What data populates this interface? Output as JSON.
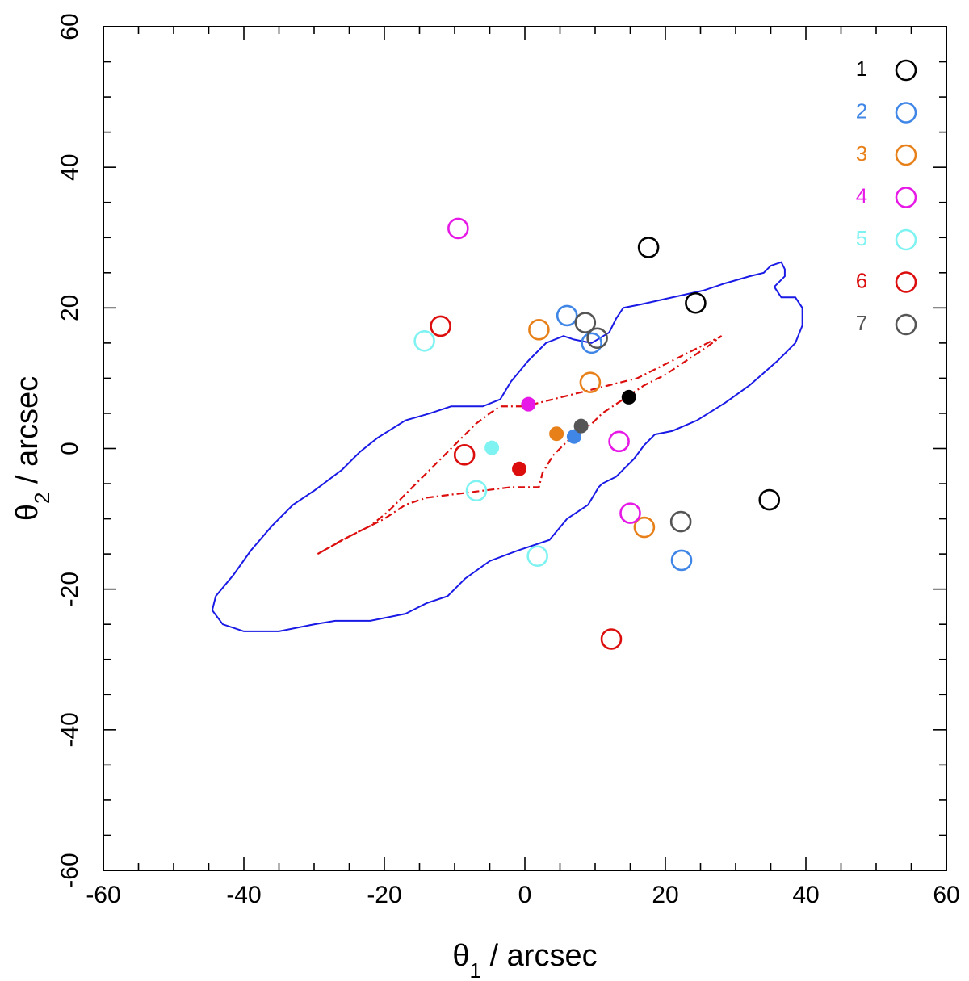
{
  "chart_data": {
    "type": "scatter",
    "title": "",
    "xlabel": {
      "symbol": "θ",
      "sub": "1",
      "unit": " / arcsec"
    },
    "ylabel": {
      "symbol": "θ",
      "sub": "2",
      "unit": " / arcsec"
    },
    "xlim": [
      -60,
      60
    ],
    "ylim": [
      -60,
      60
    ],
    "xticks": [
      -60,
      -40,
      -20,
      0,
      20,
      40,
      60
    ],
    "yticks": [
      -60,
      -40,
      -20,
      0,
      20,
      40,
      60
    ],
    "xtick_labels": [
      "-60",
      "-40",
      "-20",
      "0",
      "20",
      "40",
      "60"
    ],
    "ytick_labels": [
      "-60",
      "-40",
      "-20",
      "0",
      "20",
      "40",
      "60"
    ],
    "minor_step": 5,
    "legend_position": "top-right",
    "series": [
      {
        "name": "1",
        "color": "#000000",
        "source": [
          14.8,
          7.3
        ],
        "images": [
          [
            17.6,
            28.6
          ],
          [
            24.3,
            20.7
          ],
          [
            34.8,
            -7.3
          ]
        ]
      },
      {
        "name": "2",
        "color": "#3f86e6",
        "source": [
          7.0,
          1.7
        ],
        "images": [
          [
            6.0,
            18.9
          ],
          [
            9.5,
            15.0
          ],
          [
            22.3,
            -15.9
          ]
        ]
      },
      {
        "name": "3",
        "color": "#e8801a",
        "source": [
          4.5,
          2.1
        ],
        "images": [
          [
            2.0,
            16.9
          ],
          [
            9.3,
            9.4
          ],
          [
            17.0,
            -11.2
          ]
        ]
      },
      {
        "name": "4",
        "color": "#e619e6",
        "source": [
          0.5,
          6.3
        ],
        "images": [
          [
            -9.5,
            31.3
          ],
          [
            13.4,
            1.0
          ],
          [
            15.0,
            -9.2
          ]
        ]
      },
      {
        "name": "5",
        "color": "#7ff2f2",
        "source": [
          -4.7,
          0.1
        ],
        "images": [
          [
            -14.3,
            15.3
          ],
          [
            -6.9,
            -6.0
          ],
          [
            1.8,
            -15.3
          ]
        ]
      },
      {
        "name": "6",
        "color": "#dc0d0d",
        "source": [
          -0.8,
          -2.9
        ],
        "images": [
          [
            -12.0,
            17.4
          ],
          [
            -8.6,
            -0.9
          ],
          [
            12.3,
            -27.1
          ]
        ]
      },
      {
        "name": "7",
        "color": "#555555",
        "source": [
          8.0,
          3.2
        ],
        "images": [
          [
            8.6,
            17.9
          ],
          [
            10.3,
            15.7
          ],
          [
            22.2,
            -10.4
          ]
        ]
      }
    ],
    "critical_curve": {
      "color": "#1a1ae6",
      "points": [
        [
          -27,
          -24.5
        ],
        [
          -22,
          -24.5
        ],
        [
          -17,
          -23.5
        ],
        [
          -14,
          -22
        ],
        [
          -11,
          -21
        ],
        [
          -8.5,
          -18.5
        ],
        [
          -5,
          -16
        ],
        [
          -1,
          -14.5
        ],
        [
          3.5,
          -13
        ],
        [
          6,
          -10
        ],
        [
          9,
          -8
        ],
        [
          10.5,
          -5.5
        ],
        [
          11,
          -5
        ],
        [
          13,
          -4
        ],
        [
          15.5,
          -1.5
        ],
        [
          17,
          0.5
        ],
        [
          18.5,
          2
        ],
        [
          21,
          2.5
        ],
        [
          24.5,
          4
        ],
        [
          28.5,
          6.5
        ],
        [
          32,
          9
        ],
        [
          36,
          12.5
        ],
        [
          38.5,
          15
        ],
        [
          39.5,
          17.5
        ],
        [
          39.5,
          20
        ],
        [
          38.5,
          21.5
        ],
        [
          36.5,
          21.5
        ],
        [
          35.5,
          23
        ],
        [
          37,
          24.5
        ],
        [
          37,
          25.5
        ],
        [
          36.5,
          26.5
        ],
        [
          35,
          26
        ],
        [
          34,
          25
        ],
        [
          32,
          24.5
        ],
        [
          28.5,
          23.5
        ],
        [
          25.5,
          22.5
        ],
        [
          21,
          21.5
        ],
        [
          16.5,
          20.5
        ],
        [
          14,
          20
        ],
        [
          13,
          18.5
        ],
        [
          12,
          16.5
        ],
        [
          9.5,
          15
        ],
        [
          7,
          15.5
        ],
        [
          5.5,
          16
        ],
        [
          3,
          15
        ],
        [
          0.5,
          12.5
        ],
        [
          -2,
          9.5
        ],
        [
          -3.5,
          7
        ],
        [
          -6,
          6
        ],
        [
          -8,
          6
        ],
        [
          -10.5,
          6
        ],
        [
          -13.5,
          5
        ],
        [
          -17,
          4
        ],
        [
          -21,
          1.5
        ],
        [
          -23.5,
          -0.5
        ],
        [
          -26,
          -3
        ],
        [
          -30,
          -6
        ],
        [
          -33,
          -8
        ],
        [
          -36,
          -11
        ],
        [
          -39,
          -14.5
        ],
        [
          -41.5,
          -18
        ],
        [
          -44,
          -21
        ],
        [
          -44.5,
          -23
        ],
        [
          -43,
          -25
        ],
        [
          -40,
          -26
        ],
        [
          -35,
          -26
        ],
        [
          -30,
          -25
        ],
        [
          -27,
          -24.5
        ]
      ]
    },
    "caustic": {
      "color": "#dc0d0d",
      "points": [
        [
          -29.5,
          -15
        ],
        [
          -25,
          -12.5
        ],
        [
          -20,
          -10
        ],
        [
          -17,
          -8
        ],
        [
          -14,
          -7
        ],
        [
          -10,
          -6.5
        ],
        [
          -6,
          -6
        ],
        [
          -2,
          -5.5
        ],
        [
          0.5,
          -5.5
        ],
        [
          2,
          -5.5
        ],
        [
          2.5,
          -3.5
        ],
        [
          4,
          -1
        ],
        [
          6,
          1
        ],
        [
          8,
          2.5
        ],
        [
          9.5,
          3.5
        ],
        [
          11,
          5
        ],
        [
          14,
          7
        ],
        [
          17,
          9
        ],
        [
          20,
          10.5
        ],
        [
          23,
          12.5
        ],
        [
          26,
          14.5
        ],
        [
          28,
          16
        ],
        [
          24,
          14
        ],
        [
          20,
          12
        ],
        [
          16,
          10
        ],
        [
          12,
          9
        ],
        [
          8,
          8
        ],
        [
          4,
          7
        ],
        [
          0,
          6
        ],
        [
          -3.5,
          6
        ],
        [
          -5,
          5
        ],
        [
          -7,
          3.5
        ],
        [
          -9,
          1.5
        ],
        [
          -11,
          -0.5
        ],
        [
          -13,
          -2.5
        ],
        [
          -15,
          -4.5
        ],
        [
          -17,
          -6.5
        ],
        [
          -19.5,
          -9
        ],
        [
          -22,
          -11
        ],
        [
          -26,
          -13
        ],
        [
          -29.5,
          -15
        ]
      ]
    }
  }
}
